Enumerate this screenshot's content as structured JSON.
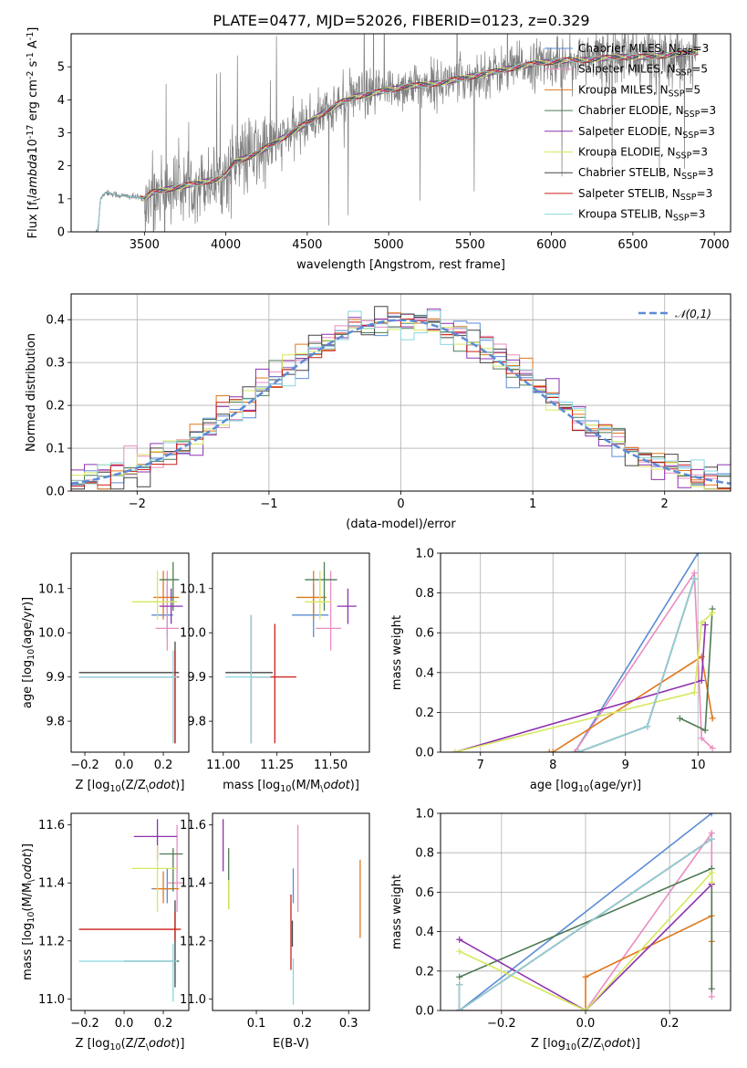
{
  "figure": {
    "title": "PLATE=0477, MJD=52026, FIBERID=0123, z=0.329"
  },
  "chart_data": [
    {
      "type": "line",
      "id": "spectrum",
      "xlabel": "wavelength [Angstrom, rest frame]",
      "ylabel": "Flux [f$_\\lambda$10$^{-17}$ erg cm$^{-2}$ s$^{-1}$ A$^{-1}$]",
      "xlim": [
        3050,
        7100
      ],
      "ylim": [
        0,
        6
      ],
      "xticks": [
        3500,
        4000,
        4500,
        5000,
        5500,
        6000,
        6500,
        7000
      ],
      "yticks": [
        0,
        1,
        2,
        3,
        4,
        5
      ],
      "series": [
        {
          "name": "Chabrier MILES, N$_{SSP}$=3",
          "color": "#5b8bd6"
        },
        {
          "name": "Salpeter MILES, N$_{SSP}$=5",
          "color": "#e98dc2"
        },
        {
          "name": "Kroupa MILES, N$_{SSP}$=5",
          "color": "#e0781a"
        },
        {
          "name": "Chabrier ELODIE, N$_{SSP}$=3",
          "color": "#4e7b55"
        },
        {
          "name": "Salpeter ELODIE, N$_{SSP}$=3",
          "color": "#8e30b0"
        },
        {
          "name": "Kroupa ELODIE, N$_{SSP}$=3",
          "color": "#d6e85c"
        },
        {
          "name": "Chabrier STELIB, N$_{SSP}$=3",
          "color": "#444444"
        },
        {
          "name": "Salpeter STELIB, N$_{SSP}$=3",
          "color": "#cc1f1a"
        },
        {
          "name": "Kroupa STELIB, N$_{SSP}$=3",
          "color": "#8ad6e0"
        }
      ],
      "data_color": "#808080",
      "continuum": {
        "x": [
          3200,
          3215,
          3230,
          3260,
          3350,
          3450,
          3500,
          3550,
          3650,
          3750,
          3850,
          3950,
          4000,
          4050,
          4100,
          4200,
          4300,
          4400,
          4500,
          4600,
          4700,
          4800,
          4900,
          5000,
          5100,
          5200,
          5300,
          5400,
          5500,
          5600,
          5700,
          5800,
          5900,
          6000,
          6100,
          6200,
          6300,
          6400,
          6500,
          6600,
          6700,
          6800,
          6900
        ],
        "y": [
          0.0,
          0.0,
          1.0,
          1.2,
          1.1,
          1.05,
          1.0,
          1.2,
          1.3,
          1.4,
          1.5,
          1.6,
          1.7,
          2.1,
          2.2,
          2.4,
          2.7,
          3.0,
          3.3,
          3.6,
          3.9,
          4.1,
          4.2,
          4.3,
          4.4,
          4.45,
          4.5,
          4.6,
          4.7,
          4.8,
          4.9,
          5.0,
          5.1,
          5.15,
          5.2,
          5.2,
          5.25,
          5.3,
          5.3,
          5.3,
          5.35,
          5.4,
          5.45
        ]
      },
      "legend_loc": "upper right"
    },
    {
      "type": "bar",
      "id": "residual-histogram",
      "xlabel": "(data-model)/error",
      "ylabel": "Normed distribution",
      "xlim": [
        -2.5,
        2.5
      ],
      "ylim": [
        0,
        0.46
      ],
      "xticks": [
        -2,
        -1,
        0,
        1,
        2
      ],
      "yticks": [
        0.0,
        0.1,
        0.2,
        0.3,
        0.4
      ],
      "bin_edges": [
        -2.5,
        -2.4,
        -2.3,
        -2.2,
        -2.1,
        -2.0,
        -1.9,
        -1.8,
        -1.7,
        -1.6,
        -1.5,
        -1.4,
        -1.3,
        -1.2,
        -1.1,
        -1.0,
        -0.9,
        -0.8,
        -0.7,
        -0.6,
        -0.5,
        -0.4,
        -0.3,
        -0.2,
        -0.1,
        0.0,
        0.1,
        0.2,
        0.3,
        0.4,
        0.5,
        0.6,
        0.7,
        0.8,
        0.9,
        1.0,
        1.1,
        1.2,
        1.3,
        1.4,
        1.5,
        1.6,
        1.7,
        1.8,
        1.9,
        2.0,
        2.1,
        2.2,
        2.3,
        2.4,
        2.5
      ],
      "gaussian": {
        "name": "$\\mathcal{N}(0,1)$",
        "color": "#5b8bd6"
      },
      "grid": true,
      "legend_loc": "upper right"
    },
    {
      "type": "scatter",
      "id": "age-vs-z",
      "xlabel": "Z [log$_{10}$(Z/Z$_\\odot$)]",
      "ylabel": "age  [log$_{10}$(age/yr)]",
      "xlim": [
        -0.27,
        0.33
      ],
      "ylim": [
        9.73,
        10.18
      ],
      "xticks": [
        -0.2,
        0.0,
        0.2
      ],
      "yticks": [
        9.8,
        9.9,
        10.0,
        10.1
      ],
      "points": [
        {
          "x": 0.22,
          "y": 10.04,
          "xerr": [
            0.08,
            0.03
          ],
          "yerr": [
            0.05,
            0.07
          ],
          "color": "#5b8bd6"
        },
        {
          "x": 0.22,
          "y": 10.01,
          "xerr": [
            0.06,
            0.06
          ],
          "yerr": [
            0.05,
            0.13
          ],
          "color": "#e98dc2"
        },
        {
          "x": 0.2,
          "y": 10.08,
          "xerr": [
            0.05,
            0.08
          ],
          "yerr": [
            0.05,
            0.06
          ],
          "color": "#e0781a"
        },
        {
          "x": 0.25,
          "y": 10.12,
          "xerr": [
            0.07,
            0.03
          ],
          "yerr": [
            0.07,
            0.04
          ],
          "color": "#4e7b55"
        },
        {
          "x": 0.24,
          "y": 10.06,
          "xerr": [
            0.06,
            0.06
          ],
          "yerr": [
            0.04,
            0.04
          ],
          "color": "#8e30b0"
        },
        {
          "x": 0.17,
          "y": 10.07,
          "xerr": [
            0.13,
            0.1
          ],
          "yerr": [
            0.04,
            0.07
          ],
          "color": "#d6e85c"
        },
        {
          "x": 0.26,
          "y": 9.91,
          "xerr": [
            0.49,
            0.02
          ],
          "yerr": [
            0.16,
            0.07
          ],
          "color": "#444444"
        },
        {
          "x": 0.26,
          "y": 9.9,
          "xerr": [
            0.49,
            0.02
          ],
          "yerr": [
            0.15,
            0.06
          ],
          "color": "#cc1f1a"
        },
        {
          "x": 0.25,
          "y": 9.9,
          "xerr": [
            0.48,
            0.02
          ],
          "yerr": [
            0.15,
            0.06
          ],
          "color": "#8ad6e0"
        }
      ]
    },
    {
      "type": "scatter",
      "id": "age-vs-mass",
      "xlabel": "mass [log$_{10}$(M/M$_\\odot$)]",
      "ylabel": "",
      "xlim": [
        10.95,
        11.68
      ],
      "ylim": [
        9.73,
        10.18
      ],
      "xticks": [
        11.0,
        11.25,
        11.5
      ],
      "yticks": [
        9.8,
        9.9,
        10.0,
        10.1
      ],
      "points": [
        {
          "x": 11.42,
          "y": 10.04,
          "xerr": [
            0.1,
            0.07
          ],
          "yerr": [
            0.05,
            0.07
          ],
          "color": "#5b8bd6"
        },
        {
          "x": 11.5,
          "y": 10.01,
          "xerr": [
            0.07,
            0.05
          ],
          "yerr": [
            0.05,
            0.13
          ],
          "color": "#e98dc2"
        },
        {
          "x": 11.42,
          "y": 10.08,
          "xerr": [
            0.08,
            0.06
          ],
          "yerr": [
            0.05,
            0.06
          ],
          "color": "#e0781a"
        },
        {
          "x": 11.47,
          "y": 10.12,
          "xerr": [
            0.09,
            0.06
          ],
          "yerr": [
            0.07,
            0.04
          ],
          "color": "#4e7b55"
        },
        {
          "x": 11.58,
          "y": 10.06,
          "xerr": [
            0.05,
            0.04
          ],
          "yerr": [
            0.04,
            0.04
          ],
          "color": "#8e30b0"
        },
        {
          "x": 11.45,
          "y": 10.07,
          "xerr": [
            0.07,
            0.05
          ],
          "yerr": [
            0.04,
            0.07
          ],
          "color": "#d6e85c"
        },
        {
          "x": 11.13,
          "y": 9.91,
          "xerr": [
            0.12,
            0.1
          ],
          "yerr": [
            0.16,
            0.13
          ],
          "color": "#444444"
        },
        {
          "x": 11.24,
          "y": 9.9,
          "xerr": [
            0.11,
            0.1
          ],
          "yerr": [
            0.15,
            0.12
          ],
          "color": "#cc1f1a"
        },
        {
          "x": 11.13,
          "y": 9.9,
          "xerr": [
            0.12,
            0.09
          ],
          "yerr": [
            0.15,
            0.14
          ],
          "color": "#8ad6e0"
        }
      ]
    },
    {
      "type": "line",
      "id": "mass-weight-vs-age",
      "xlabel": "age  [log$_{10}$(age/yr)]",
      "ylabel": "mass weight",
      "xlim": [
        6.45,
        10.45
      ],
      "ylim": [
        0,
        1
      ],
      "xticks": [
        7,
        8,
        9,
        10
      ],
      "yticks": [
        0.0,
        0.2,
        0.4,
        0.6,
        0.8,
        1.0
      ],
      "grid": true,
      "series": [
        {
          "color": "#5b8bd6",
          "x": [
            8.3,
            10.0
          ],
          "y": [
            0.0,
            1.0
          ]
        },
        {
          "color": "#e98dc2",
          "x": [
            8.3,
            9.95,
            10.05,
            10.2
          ],
          "y": [
            0.0,
            0.9,
            0.07,
            0.02
          ]
        },
        {
          "color": "#e0781a",
          "x": [
            7.95,
            8.0,
            10.05,
            10.2,
            10.2
          ],
          "y": [
            0.0,
            0.0,
            0.48,
            0.17,
            0.17
          ]
        },
        {
          "color": "#4e7b55",
          "x": [
            9.75,
            10.1,
            10.2
          ],
          "y": [
            0.17,
            0.11,
            0.72
          ]
        },
        {
          "color": "#8e30b0",
          "x": [
            6.65,
            10.05,
            10.1
          ],
          "y": [
            0.0,
            0.36,
            0.64
          ]
        },
        {
          "color": "#d6e85c",
          "x": [
            6.65,
            9.95,
            10.05,
            10.2
          ],
          "y": [
            0.0,
            0.3,
            0.65,
            0.7
          ]
        },
        {
          "color": "#444444",
          "x": [
            8.35,
            9.3,
            9.95
          ],
          "y": [
            0.0,
            0.13,
            0.87
          ]
        },
        {
          "color": "#cc1f1a",
          "x": [
            8.35,
            9.3,
            9.95
          ],
          "y": [
            0.0,
            0.13,
            0.87
          ]
        },
        {
          "color": "#8ad6e0",
          "x": [
            8.35,
            9.3,
            9.95
          ],
          "y": [
            0.0,
            0.13,
            0.87
          ]
        }
      ]
    },
    {
      "type": "scatter",
      "id": "mass-vs-z",
      "xlabel": "Z [log$_{10}$(Z/Z$_\\odot$)]",
      "ylabel": "mass [log$_{10}$(M/M$_\\odot$)]",
      "xlim": [
        -0.27,
        0.33
      ],
      "ylim": [
        10.96,
        11.64
      ],
      "xticks": [
        -0.2,
        0.0,
        0.2
      ],
      "yticks": [
        11.0,
        11.2,
        11.4,
        11.6
      ],
      "points": [
        {
          "x": 0.22,
          "y": 11.38,
          "xerr": [
            0.08,
            0.03
          ],
          "yerr": [
            0.05,
            0.07
          ],
          "color": "#5b8bd6"
        },
        {
          "x": 0.27,
          "y": 11.4,
          "xerr": [
            0.05,
            0.03
          ],
          "yerr": [
            0.1,
            0.2
          ],
          "color": "#e98dc2"
        },
        {
          "x": 0.2,
          "y": 11.38,
          "xerr": [
            0.05,
            0.08
          ],
          "yerr": [
            0.05,
            0.06
          ],
          "color": "#e0781a"
        },
        {
          "x": 0.25,
          "y": 11.5,
          "xerr": [
            0.07,
            0.05
          ],
          "yerr": [
            0.13,
            0.02
          ],
          "color": "#4e7b55"
        },
        {
          "x": 0.17,
          "y": 11.56,
          "xerr": [
            0.12,
            0.1
          ],
          "yerr": [
            0.08,
            0.06
          ],
          "color": "#8e30b0"
        },
        {
          "x": 0.17,
          "y": 11.45,
          "xerr": [
            0.13,
            0.1
          ],
          "yerr": [
            0.15,
            0.08
          ],
          "color": "#d6e85c"
        },
        {
          "x": 0.26,
          "y": 11.13,
          "xerr": [
            0.26,
            0.02
          ],
          "yerr": [
            0.09,
            0.21
          ],
          "color": "#444444"
        },
        {
          "x": 0.26,
          "y": 11.24,
          "xerr": [
            0.49,
            0.03
          ],
          "yerr": [
            0.04,
            0.06
          ],
          "color": "#cc1f1a"
        },
        {
          "x": 0.25,
          "y": 11.13,
          "xerr": [
            0.48,
            0.02
          ],
          "yerr": [
            0.14,
            0.06
          ],
          "color": "#8ad6e0"
        }
      ]
    },
    {
      "type": "scatter",
      "id": "mass-vs-ebv",
      "xlabel": "E(B-V)",
      "ylabel": "",
      "xlim": [
        0.005,
        0.345
      ],
      "ylim": [
        10.96,
        11.64
      ],
      "xticks": [
        0.1,
        0.2,
        0.3
      ],
      "yticks": [
        11.0,
        11.2,
        11.4,
        11.6
      ],
      "points": [
        {
          "x": 0.18,
          "y": 11.38,
          "xerr": [
            0.0,
            0.0
          ],
          "yerr": [
            0.05,
            0.07
          ],
          "color": "#5b8bd6"
        },
        {
          "x": 0.19,
          "y": 11.4,
          "xerr": [
            0.0,
            0.0
          ],
          "yerr": [
            0.1,
            0.2
          ],
          "color": "#e98dc2"
        },
        {
          "x": 0.325,
          "y": 11.38,
          "xerr": [
            0.0,
            0.0
          ],
          "yerr": [
            0.17,
            0.1
          ],
          "color": "#e0781a"
        },
        {
          "x": 0.04,
          "y": 11.42,
          "xerr": [
            0.0,
            0.0
          ],
          "yerr": [
            0.11,
            0.1
          ],
          "color": "#4e7b55"
        },
        {
          "x": 0.028,
          "y": 11.56,
          "xerr": [
            0.0,
            0.0
          ],
          "yerr": [
            0.12,
            0.06
          ],
          "color": "#8e30b0"
        },
        {
          "x": 0.04,
          "y": 11.35,
          "xerr": [
            0.0,
            0.0
          ],
          "yerr": [
            0.04,
            0.06
          ],
          "color": "#d6e85c"
        },
        {
          "x": 0.175,
          "y": 11.24,
          "xerr": [
            0.0,
            0.0
          ],
          "yerr": [
            0.14,
            0.12
          ],
          "color": "#cc1f1a"
        },
        {
          "x": 0.18,
          "y": 11.06,
          "xerr": [
            0.0,
            0.0
          ],
          "yerr": [
            0.08,
            0.08
          ],
          "color": "#8ad6e0"
        },
        {
          "x": 0.178,
          "y": 11.22,
          "xerr": [
            0.0,
            0.0
          ],
          "yerr": [
            0.04,
            0.05
          ],
          "color": "#444444"
        }
      ]
    },
    {
      "type": "line",
      "id": "mass-weight-vs-z",
      "xlabel": "Z [log$_{10}$(Z/Z$_\\odot$)]",
      "ylabel": "mass weight",
      "xlim": [
        -0.345,
        0.345
      ],
      "ylim": [
        0,
        1
      ],
      "xticks": [
        -0.2,
        0.0,
        0.2
      ],
      "yticks": [
        0.0,
        0.2,
        0.4,
        0.6,
        0.8,
        1.0
      ],
      "grid": true,
      "series": [
        {
          "color": "#5b8bd6",
          "x": [
            -0.3,
            0.3
          ],
          "y": [
            0.0,
            1.0
          ]
        },
        {
          "color": "#e98dc2",
          "x": [
            -0.3,
            0.0,
            0.3,
            0.3
          ],
          "y": [
            0.0,
            0.0,
            0.9,
            0.07
          ]
        },
        {
          "color": "#e0781a",
          "x": [
            0.0,
            0.0,
            0.3,
            0.3
          ],
          "y": [
            0.0,
            0.17,
            0.48,
            0.35
          ]
        },
        {
          "color": "#4e7b55",
          "x": [
            -0.3,
            0.3,
            0.3
          ],
          "y": [
            0.17,
            0.72,
            0.11
          ]
        },
        {
          "color": "#8e30b0",
          "x": [
            -0.3,
            0.0,
            0.3,
            0.3
          ],
          "y": [
            0.36,
            0.0,
            0.64,
            0.64
          ]
        },
        {
          "color": "#d6e85c",
          "x": [
            -0.3,
            0.0,
            0.3,
            0.3
          ],
          "y": [
            0.3,
            0.0,
            0.7,
            0.65
          ]
        },
        {
          "color": "#444444",
          "x": [
            -0.3,
            -0.3,
            0.3
          ],
          "y": [
            0.13,
            0.0,
            0.87
          ]
        },
        {
          "color": "#cc1f1a",
          "x": [
            -0.3,
            -0.3,
            0.3
          ],
          "y": [
            0.13,
            0.0,
            0.87
          ]
        },
        {
          "color": "#8ad6e0",
          "x": [
            -0.3,
            -0.3,
            0.3
          ],
          "y": [
            0.13,
            0.0,
            0.87
          ]
        }
      ]
    }
  ]
}
